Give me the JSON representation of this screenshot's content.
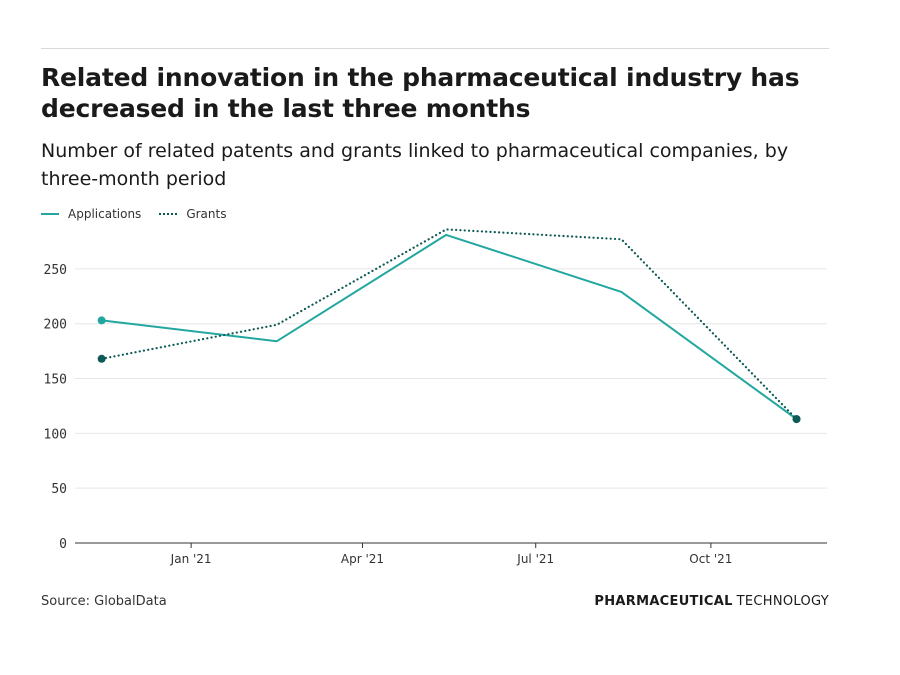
{
  "header": {
    "title": "Related innovation in the pharmaceutical industry has decreased in the last three months",
    "subtitle": "Number of related patents and grants linked to pharmaceutical companies, by three-month period"
  },
  "footer": {
    "source": "Source: GlobalData",
    "brand_strong": "PHARMACEUTICAL",
    "brand_light": "TECHNOLOGY"
  },
  "colors": {
    "applications": "#22a7a0",
    "grants": "#0e5a57",
    "grid": "#e6e6e6",
    "axis": "#333333"
  },
  "chart_data": {
    "type": "line",
    "title": "Related innovation in the pharmaceutical industry has decreased in the last three months",
    "subtitle": "Number of related patents and grants linked to pharmaceutical companies, by three-month period",
    "x": [
      "2020-11-15",
      "2021-02-15",
      "2021-05-15",
      "2021-08-15",
      "2021-11-15"
    ],
    "x_ticks": [
      {
        "date": "2021-01-01",
        "label": "Jan '21"
      },
      {
        "date": "2021-04-01",
        "label": "Apr '21"
      },
      {
        "date": "2021-07-01",
        "label": "Jul '21"
      },
      {
        "date": "2021-10-01",
        "label": "Oct '21"
      }
    ],
    "xlim": [
      "2020-11-01",
      "2021-12-01"
    ],
    "y_ticks": [
      0,
      50,
      100,
      150,
      200,
      250
    ],
    "ylim": [
      0,
      290
    ],
    "grid": true,
    "legend_position": "top-left",
    "series": [
      {
        "name": "Applications",
        "style": "solid",
        "values": [
          203,
          184,
          281,
          229,
          113
        ]
      },
      {
        "name": "Grants",
        "style": "dotted",
        "values": [
          168,
          199,
          286,
          277,
          113
        ]
      }
    ]
  }
}
